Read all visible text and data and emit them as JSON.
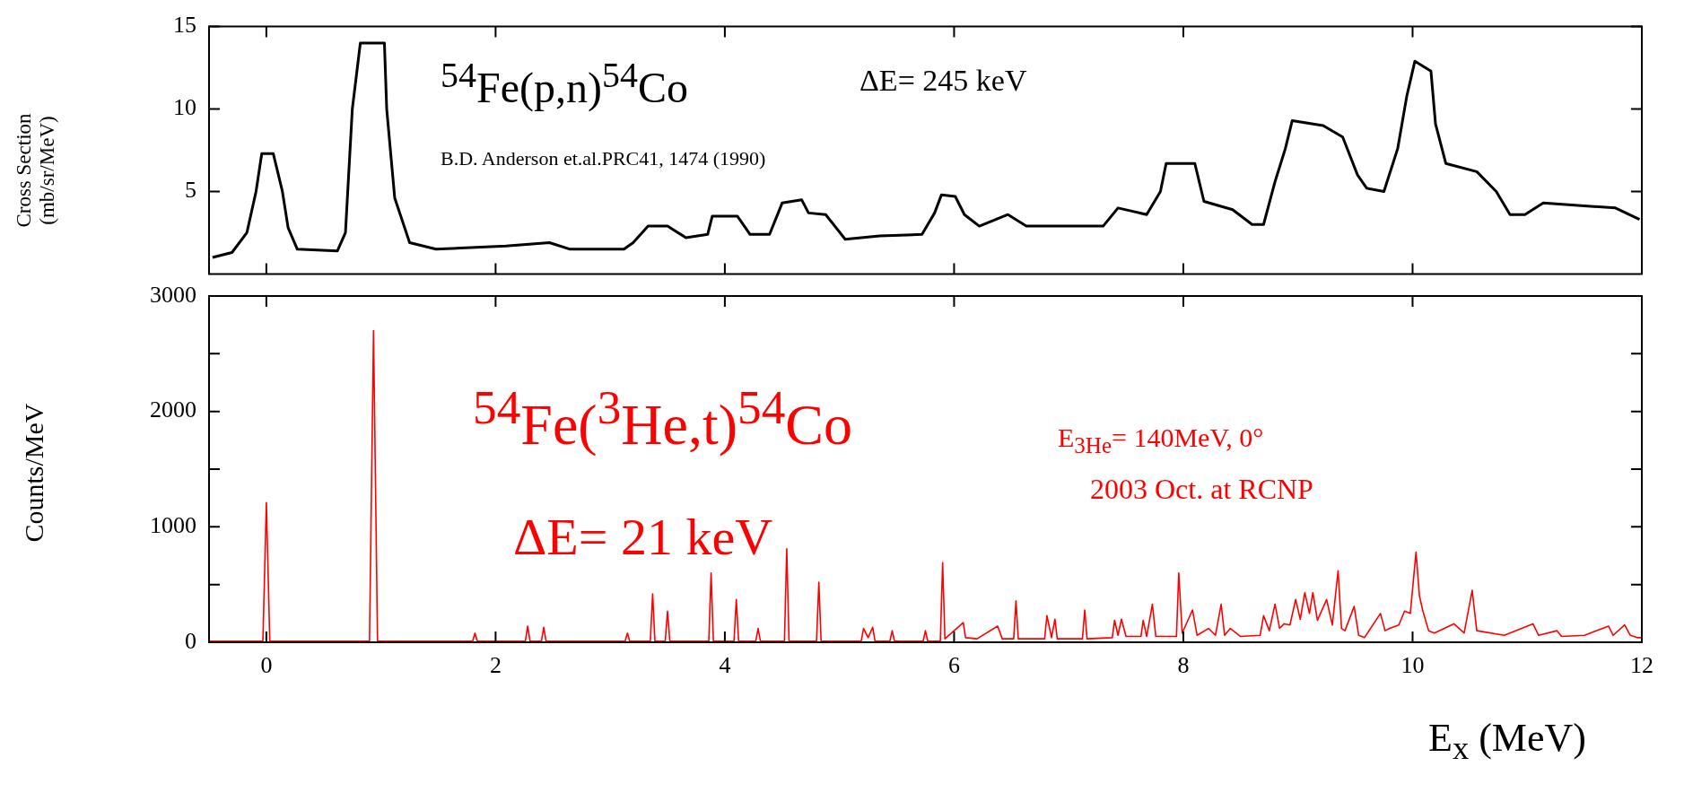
{
  "chart_data": [
    {
      "type": "line",
      "ylabel": "Cross Section (mb/sr/MeV)",
      "xlim": [
        -0.5,
        12
      ],
      "xticks": [
        0,
        2,
        4,
        6,
        8,
        10,
        12
      ],
      "ylim": [
        0,
        15
      ],
      "yticks": [
        5,
        10,
        15
      ],
      "tick_labels": "y",
      "annotations": [
        "$^{54}$Fe(p,n)$^{54}$Co",
        "B.D. Anderson et.al.PRC41, 1474 (1990)",
        "ΔE= 245 keV"
      ],
      "series": [
        {
          "color": "#000000",
          "x": [
            -0.47,
            -0.3,
            -0.17,
            -0.09,
            -0.04,
            0.06,
            0.14,
            0.19,
            0.27,
            0.62,
            0.69,
            0.75,
            0.82,
            1.03,
            1.05,
            1.12,
            1.25,
            1.48,
            2.09,
            2.47,
            2.65,
            3.12,
            3.2,
            3.33,
            3.5,
            3.66,
            3.85,
            3.89,
            4.11,
            4.22,
            4.39,
            4.5,
            4.67,
            4.73,
            4.88,
            5.05,
            5.35,
            5.72,
            5.83,
            5.89,
            6.01,
            6.09,
            6.22,
            6.47,
            6.63,
            7.3,
            7.43,
            7.68,
            7.8,
            7.85,
            8.1,
            8.18,
            8.43,
            8.6,
            8.7,
            8.8,
            8.89,
            8.95,
            9.22,
            9.39,
            9.52,
            9.6,
            9.75,
            9.87,
            9.95,
            10.02,
            10.16,
            10.2,
            10.29,
            10.56,
            10.73,
            10.85,
            10.98,
            11.14,
            11.77,
            11.98
          ],
          "values": [
            1.0,
            1.3,
            2.5,
            5.0,
            7.3,
            7.3,
            5.0,
            2.8,
            1.5,
            1.4,
            2.5,
            10.0,
            14.0,
            14.0,
            10.0,
            4.6,
            1.9,
            1.5,
            1.7,
            1.9,
            1.5,
            1.5,
            1.9,
            2.9,
            2.9,
            2.2,
            2.4,
            3.5,
            3.5,
            2.4,
            2.4,
            4.3,
            4.5,
            3.7,
            3.6,
            2.1,
            2.3,
            2.4,
            3.7,
            4.8,
            4.7,
            3.6,
            2.9,
            3.6,
            2.9,
            2.9,
            4.0,
            3.6,
            5.0,
            6.7,
            6.7,
            4.4,
            3.9,
            3.0,
            3.0,
            5.6,
            7.6,
            9.3,
            9.0,
            8.3,
            6.0,
            5.2,
            5.0,
            7.6,
            10.8,
            12.9,
            12.3,
            9.1,
            6.7,
            6.2,
            5.0,
            3.6,
            3.6,
            4.3,
            4.0,
            3.3
          ]
        }
      ]
    },
    {
      "type": "line",
      "xlabel": "E$_{x}$ (MeV)",
      "ylabel": "Counts/MeV",
      "xlim": [
        -0.5,
        12
      ],
      "xticks": [
        0,
        2,
        4,
        6,
        8,
        10,
        12
      ],
      "ylim": [
        0,
        3000
      ],
      "yticks": [
        0,
        {
          "value": 500,
          "label": null
        },
        1000,
        {
          "value": 1500,
          "label": null
        },
        2000,
        {
          "value": 2500,
          "label": null
        },
        3000
      ],
      "annotations": [
        "$^{54}$Fe($^{3}$He,t)$^{54}$Co",
        "ΔE= 21 keV",
        "E$_{3He}$= 140MeV, 0°",
        "2003 Oct. at RCNP"
      ],
      "series": [
        {
          "color": "#ff0000",
          "x": [
            -0.5,
            -0.03,
            0,
            0.03,
            0.9,
            0.935,
            0.97,
            1.8,
            1.82,
            1.84,
            2.26,
            2.28,
            2.3,
            2.4,
            2.42,
            2.44,
            3.13,
            3.15,
            3.17,
            3.35,
            3.37,
            3.39,
            3.48,
            3.5,
            3.52,
            3.86,
            3.88,
            3.9,
            4.08,
            4.1,
            4.12,
            4.27,
            4.29,
            4.31,
            4.52,
            4.54,
            4.56,
            4.8,
            4.82,
            4.84,
            5.19,
            5.21,
            5.25,
            5.29,
            5.31,
            5.44,
            5.46,
            5.48,
            5.73,
            5.75,
            5.77,
            5.88,
            5.9,
            5.92,
            6.08,
            6.1,
            6.2,
            6.38,
            6.42,
            6.52,
            6.54,
            6.56,
            6.79,
            6.81,
            6.85,
            6.88,
            6.9,
            7.12,
            7.14,
            7.16,
            7.38,
            7.4,
            7.43,
            7.46,
            7.5,
            7.63,
            7.65,
            7.68,
            7.73,
            7.76,
            7.94,
            7.96,
            7.99,
            8.08,
            8.12,
            8.22,
            8.28,
            8.33,
            8.36,
            8.41,
            8.5,
            8.67,
            8.7,
            8.75,
            8.8,
            8.84,
            8.88,
            8.93,
            8.98,
            9.02,
            9.06,
            9.1,
            9.13,
            9.17,
            9.25,
            9.3,
            9.35,
            9.38,
            9.41,
            9.49,
            9.53,
            9.58,
            9.72,
            9.76,
            9.8,
            9.88,
            9.93,
            9.98,
            10.03,
            10.06,
            10.09,
            10.14,
            10.19,
            10.36,
            10.45,
            10.52,
            10.56,
            10.8,
            11.05,
            11.1,
            11.26,
            11.3,
            11.5,
            11.71,
            11.75,
            11.85,
            11.9,
            11.96,
            12
          ],
          "values": [
            10,
            10,
            1210,
            10,
            10,
            2700,
            10,
            10,
            80,
            10,
            10,
            140,
            10,
            10,
            130,
            10,
            10,
            80,
            10,
            10,
            420,
            10,
            10,
            270,
            10,
            10,
            600,
            10,
            10,
            370,
            10,
            10,
            120,
            10,
            10,
            810,
            10,
            10,
            520,
            10,
            10,
            120,
            40,
            130,
            10,
            10,
            100,
            10,
            10,
            100,
            10,
            10,
            690,
            30,
            170,
            40,
            30,
            140,
            30,
            30,
            360,
            30,
            30,
            230,
            40,
            200,
            30,
            30,
            280,
            30,
            40,
            190,
            60,
            200,
            50,
            50,
            190,
            50,
            330,
            50,
            50,
            600,
            80,
            280,
            60,
            120,
            60,
            330,
            60,
            120,
            50,
            60,
            230,
            100,
            330,
            120,
            160,
            150,
            370,
            200,
            430,
            250,
            430,
            190,
            370,
            150,
            620,
            120,
            100,
            310,
            60,
            40,
            250,
            100,
            120,
            150,
            270,
            250,
            780,
            400,
            270,
            100,
            80,
            160,
            80,
            450,
            100,
            60,
            160,
            60,
            100,
            50,
            60,
            140,
            60,
            150,
            60,
            40,
            40
          ]
        }
      ]
    }
  ]
}
